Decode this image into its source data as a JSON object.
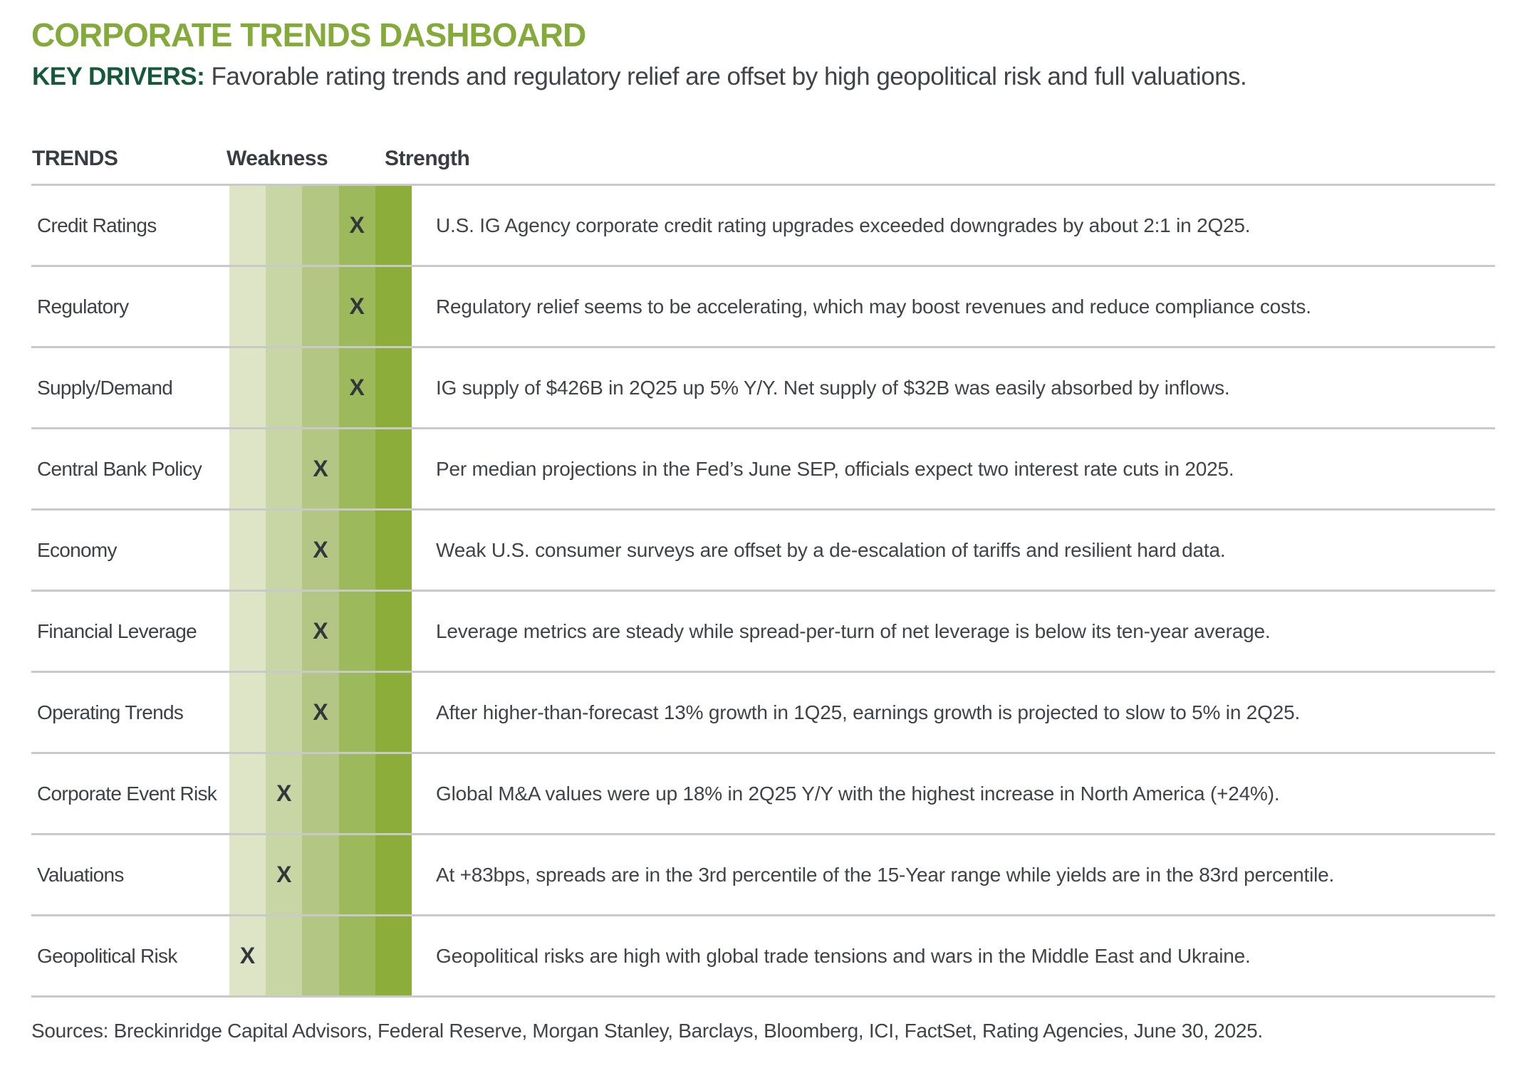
{
  "header": {
    "title": "CORPORATE TRENDS DASHBOARD",
    "key_drivers_label": "KEY DRIVERS:",
    "key_drivers_text": "Favorable rating trends and regulatory relief are offset by high geopolitical risk and full valuations."
  },
  "table": {
    "columns": {
      "trends": "TRENDS",
      "weakness": "Weakness",
      "strength": "Strength"
    },
    "scale": {
      "levels": 5,
      "marker": "X",
      "colors": [
        "#dde5c6",
        "#c8d5a4",
        "#b3c684",
        "#9cba5b",
        "#8cad3a"
      ]
    },
    "rows": [
      {
        "trend": "Credit Ratings",
        "level": 4,
        "description": "U.S. IG Agency corporate credit rating upgrades exceeded downgrades by about 2:1 in 2Q25."
      },
      {
        "trend": "Regulatory",
        "level": 4,
        "description": "Regulatory relief seems to be accelerating, which may boost revenues and reduce compliance costs."
      },
      {
        "trend": "Supply/Demand",
        "level": 4,
        "description": "IG supply of $426B in 2Q25 up 5% Y/Y. Net supply of $32B was easily absorbed by inflows."
      },
      {
        "trend": "Central Bank Policy",
        "level": 3,
        "description": "Per median projections in the Fed’s June SEP, officials expect two interest rate cuts in 2025."
      },
      {
        "trend": "Economy",
        "level": 3,
        "description": "Weak U.S. consumer surveys are offset by a de-escalation of tariffs and resilient hard data."
      },
      {
        "trend": "Financial Leverage",
        "level": 3,
        "description": "Leverage metrics are steady while spread-per-turn of net leverage is below its ten-year average."
      },
      {
        "trend": "Operating Trends",
        "level": 3,
        "description": "After higher-than-forecast 13% growth in 1Q25, earnings growth is projected to slow to 5% in 2Q25."
      },
      {
        "trend": "Corporate Event Risk",
        "level": 2,
        "description": "Global M&A values were up 18% in 2Q25 Y/Y with the highest increase in North America (+24%)."
      },
      {
        "trend": "Valuations",
        "level": 2,
        "description": "At +83bps, spreads are in the 3rd percentile of the 15-Year range while yields are in the 83rd percentile."
      },
      {
        "trend": "Geopolitical Risk",
        "level": 1,
        "description": "Geopolitical risks are high with global trade tensions and wars in the Middle East and Ukraine."
      }
    ]
  },
  "footer": {
    "sources": "Sources: Breckinridge Capital Advisors, Federal Reserve, Morgan Stanley, Barclays, Bloomberg, ICI, FactSet, Rating Agencies, June 30, 2025."
  },
  "colors": {
    "title_green": "#84aa3a",
    "key_drivers_green": "#155a38",
    "text_dark": "#3f4449",
    "marker_dark": "#32373b",
    "divider_gray": "#c9c9c9"
  }
}
